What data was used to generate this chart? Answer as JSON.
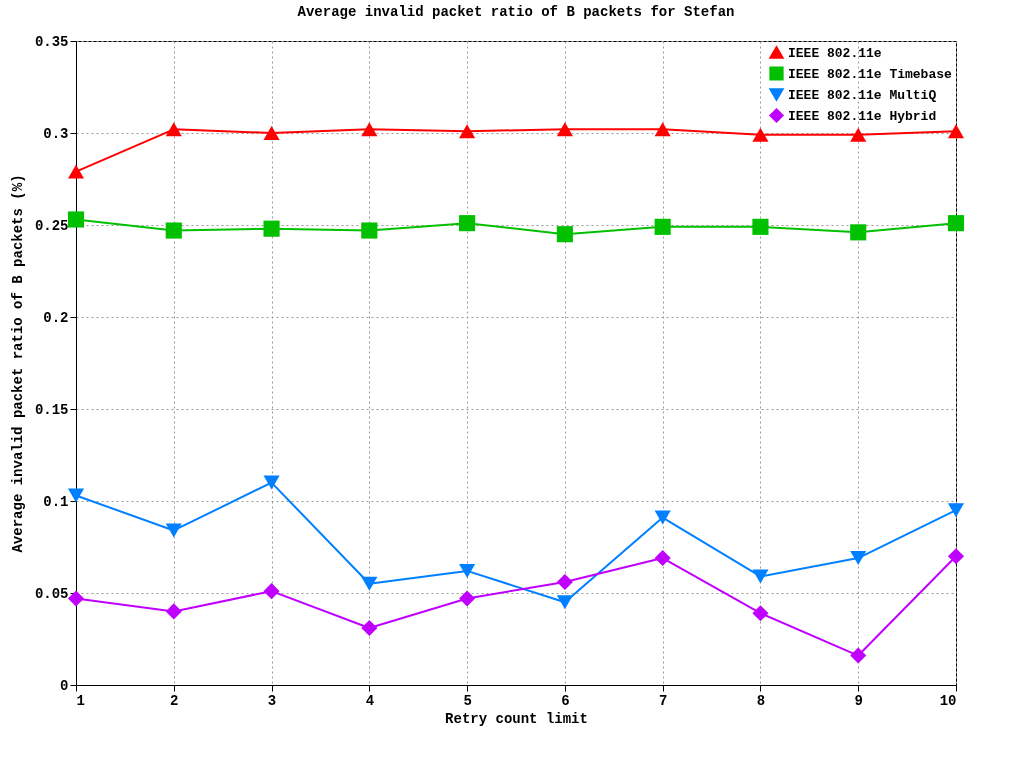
{
  "chart_data": {
    "type": "line",
    "title": "Average invalid packet ratio of B packets for Stefan",
    "xlabel": "Retry count limit",
    "ylabel": "Average invalid packet ratio of B packets (%)",
    "x": [
      1,
      2,
      3,
      4,
      5,
      6,
      7,
      8,
      9,
      10
    ],
    "xlim": [
      1,
      10
    ],
    "xticks": [
      1,
      2,
      3,
      4,
      5,
      6,
      7,
      8,
      9,
      10
    ],
    "ylim": [
      0,
      0.35
    ],
    "yticks": [
      0,
      0.05,
      0.1,
      0.15,
      0.2,
      0.25,
      0.3,
      0.35
    ],
    "grid": true,
    "legend": "top right",
    "line_style": "solid",
    "series": [
      {
        "name": "IEEE 802.11e",
        "color": "#ff0000",
        "marker": "triangle",
        "values": [
          0.279,
          0.302,
          0.3,
          0.302,
          0.301,
          0.302,
          0.302,
          0.299,
          0.299,
          0.301
        ]
      },
      {
        "name": "IEEE 802.11e Timebase",
        "color": "#00c000",
        "marker": "square",
        "values": [
          0.253,
          0.247,
          0.248,
          0.247,
          0.251,
          0.245,
          0.249,
          0.249,
          0.246,
          0.251
        ]
      },
      {
        "name": "IEEE 802.11e MultiQ",
        "color": "#0080ff",
        "marker": "triangle-down",
        "values": [
          0.103,
          0.084,
          0.11,
          0.055,
          0.062,
          0.045,
          0.091,
          0.059,
          0.069,
          0.095
        ]
      },
      {
        "name": "IEEE 802.11e Hybrid",
        "color": "#c000ff",
        "marker": "diamond",
        "values": [
          0.047,
          0.04,
          0.051,
          0.031,
          0.047,
          0.056,
          0.069,
          0.039,
          0.016,
          0.07
        ]
      }
    ]
  }
}
